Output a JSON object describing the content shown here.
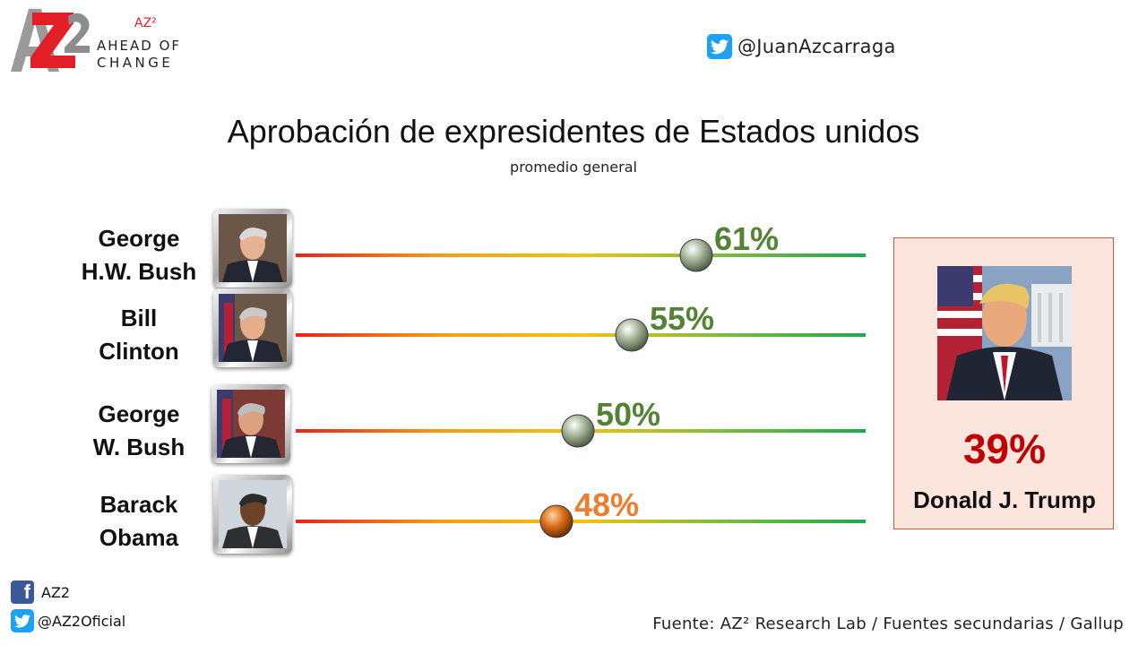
{
  "header": {
    "logo_sup": "AZ²",
    "logo_line1": "AHEAD OF",
    "logo_line2": "CHANGE",
    "twitter_handle": "@JuanAzcarraga"
  },
  "chart_data": {
    "type": "bar",
    "title": "Aprobación de expresidentes de Estados unidos",
    "subtitle": "promedio general",
    "categories": [
      "George H.W. Bush",
      "Bill Clinton",
      "George W. Bush",
      "Barack Obama"
    ],
    "name_lines": [
      [
        "George",
        "H.W. Bush"
      ],
      [
        "Bill",
        "Clinton"
      ],
      [
        "George",
        "W. Bush"
      ],
      [
        "Barack",
        "Obama"
      ]
    ],
    "values": [
      61,
      55,
      50,
      48
    ],
    "labels": [
      "61%",
      "55%",
      "50%",
      "48%"
    ],
    "label_colors": [
      "#548235",
      "#548235",
      "#548235",
      "#ed7d31"
    ],
    "xlim": [
      0,
      100
    ],
    "scale_gradient": [
      "#e8231c",
      "#f39c12",
      "#f1c40f",
      "#7dbb3c",
      "#1fa84f"
    ],
    "highlight": {
      "name": "Donald J. Trump",
      "value": 39,
      "label": "39%",
      "color": "#c00000"
    }
  },
  "footer": {
    "facebook": "AZ2",
    "twitter": "@AZ2Oficial",
    "source": "Fuente: AZ² Research Lab / Fuentes secundarias / Gallup"
  },
  "colors": {
    "brand_red": "#d7252b",
    "twitter_blue": "#1da1f2",
    "facebook_blue": "#3b5998",
    "highlight_bg": "#fbe5dd",
    "highlight_border": "#d4573e"
  }
}
